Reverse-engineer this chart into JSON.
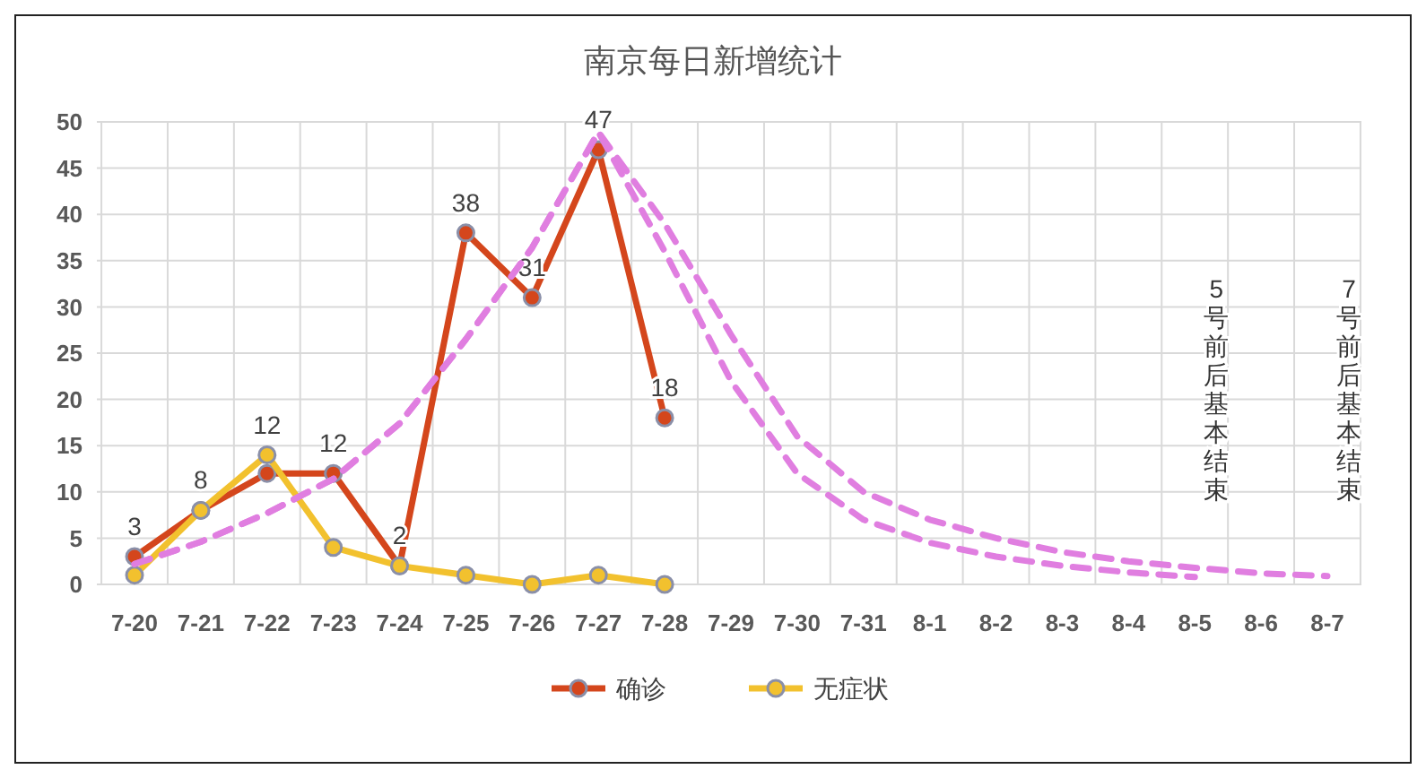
{
  "chart_data": {
    "type": "line",
    "title": "南京每日新增统计",
    "categories": [
      "7-20",
      "7-21",
      "7-22",
      "7-23",
      "7-24",
      "7-25",
      "7-26",
      "7-27",
      "7-28",
      "7-29",
      "7-30",
      "7-31",
      "8-1",
      "8-2",
      "8-3",
      "8-4",
      "8-5",
      "8-6",
      "8-7"
    ],
    "series": [
      {
        "name": "确诊",
        "color": "#d4461c",
        "marker": "circle",
        "line_style": "solid",
        "values": [
          3,
          8,
          12,
          12,
          2,
          38,
          31,
          47,
          18,
          null,
          null,
          null,
          null,
          null,
          null,
          null,
          null,
          null,
          null
        ],
        "value_labels": [
          "3",
          "8",
          "12",
          "12",
          "2",
          "38",
          "31",
          "47",
          "18",
          null,
          null,
          null,
          null,
          null,
          null,
          null,
          null,
          null,
          null
        ]
      },
      {
        "name": "无症状",
        "color": "#f2c12e",
        "marker": "circle",
        "line_style": "solid",
        "values": [
          1,
          8,
          14,
          4,
          2,
          1,
          0,
          1,
          0,
          null,
          null,
          null,
          null,
          null,
          null,
          null,
          null,
          null,
          null
        ]
      },
      {
        "color": "#e07ee0",
        "marker": "none",
        "line_style": "dashed",
        "values": [
          2.2,
          4.6,
          7.7,
          11.4,
          17.4,
          26.5,
          36.4,
          48.9,
          36,
          22,
          12,
          7,
          4.5,
          3,
          2,
          1.3,
          0.8,
          null,
          null
        ]
      },
      {
        "color": "#e07ee0",
        "marker": "none",
        "line_style": "dashed",
        "values": [
          2.2,
          4.6,
          7.7,
          11.4,
          17.4,
          26.5,
          36.4,
          48.9,
          39,
          27,
          16,
          10,
          7,
          5,
          3.5,
          2.5,
          1.8,
          1.2,
          0.9
        ]
      }
    ],
    "ylim": [
      0,
      50
    ],
    "yticks": [
      0,
      5,
      10,
      15,
      20,
      25,
      30,
      35,
      40,
      45,
      50
    ],
    "grid": true,
    "legend": "bottom",
    "annotations": [
      "5号前后基本结束",
      "7号前后基本结束"
    ]
  }
}
